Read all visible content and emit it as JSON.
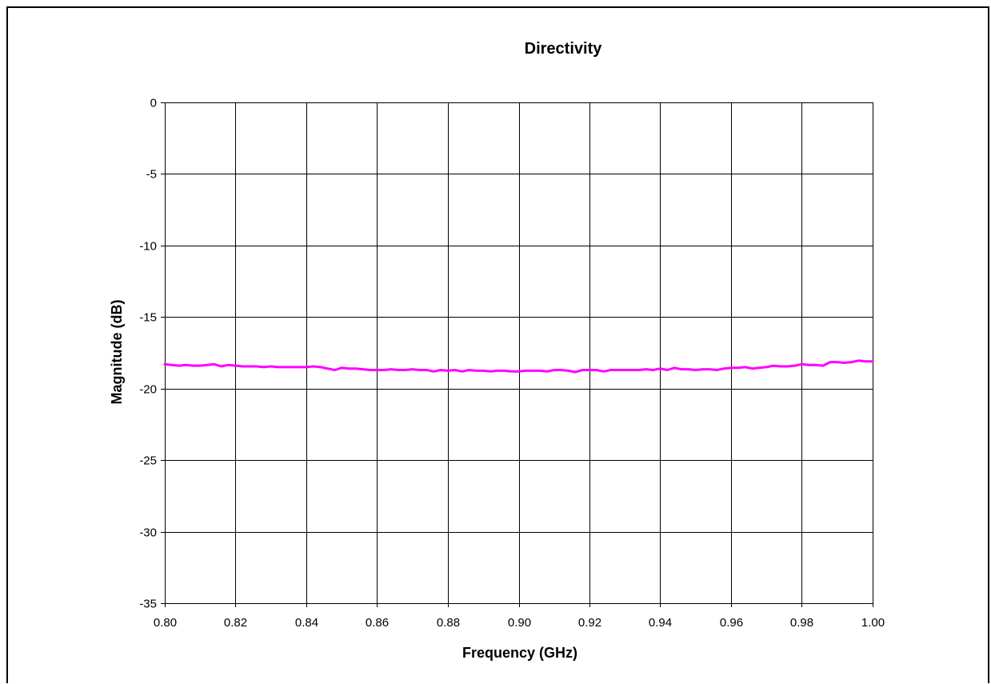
{
  "chart_data": {
    "type": "line",
    "title": "Directivity",
    "xlabel": "Frequency (GHz)",
    "ylabel": "Magnitude (dB)",
    "xlim": [
      0.8,
      1.0
    ],
    "ylim": [
      -35,
      0
    ],
    "x_ticks": [
      "0.80",
      "0.82",
      "0.84",
      "0.86",
      "0.88",
      "0.90",
      "0.92",
      "0.94",
      "0.96",
      "0.98",
      "1.00"
    ],
    "y_ticks": [
      "0",
      "-5",
      "-10",
      "-15",
      "-20",
      "-25",
      "-30",
      "-35"
    ],
    "grid": true,
    "legend": "none",
    "series": [
      {
        "color": "#ff00ff",
        "x": [
          0.8,
          0.802,
          0.804,
          0.806,
          0.808,
          0.81,
          0.812,
          0.814,
          0.816,
          0.818,
          0.82,
          0.822,
          0.824,
          0.826,
          0.828,
          0.83,
          0.832,
          0.834,
          0.836,
          0.838,
          0.84,
          0.842,
          0.844,
          0.846,
          0.848,
          0.85,
          0.852,
          0.854,
          0.856,
          0.858,
          0.86,
          0.862,
          0.864,
          0.866,
          0.868,
          0.87,
          0.872,
          0.874,
          0.876,
          0.878,
          0.88,
          0.882,
          0.884,
          0.886,
          0.888,
          0.89,
          0.892,
          0.894,
          0.896,
          0.898,
          0.9,
          0.902,
          0.904,
          0.906,
          0.908,
          0.91,
          0.912,
          0.914,
          0.916,
          0.918,
          0.92,
          0.922,
          0.924,
          0.926,
          0.928,
          0.93,
          0.932,
          0.934,
          0.936,
          0.938,
          0.94,
          0.942,
          0.944,
          0.946,
          0.948,
          0.95,
          0.952,
          0.954,
          0.956,
          0.958,
          0.96,
          0.962,
          0.964,
          0.966,
          0.968,
          0.97,
          0.972,
          0.974,
          0.976,
          0.978,
          0.98,
          0.982,
          0.984,
          0.986,
          0.988,
          0.99,
          0.992,
          0.994,
          0.996,
          0.998,
          1.0
        ],
        "values": [
          -18.3,
          -18.35,
          -18.4,
          -18.35,
          -18.4,
          -18.4,
          -18.35,
          -18.3,
          -18.45,
          -18.35,
          -18.4,
          -18.45,
          -18.45,
          -18.45,
          -18.5,
          -18.45,
          -18.5,
          -18.5,
          -18.5,
          -18.5,
          -18.5,
          -18.45,
          -18.5,
          -18.6,
          -18.7,
          -18.55,
          -18.6,
          -18.6,
          -18.65,
          -18.7,
          -18.7,
          -18.7,
          -18.65,
          -18.7,
          -18.7,
          -18.65,
          -18.7,
          -18.7,
          -18.8,
          -18.7,
          -18.75,
          -18.7,
          -18.8,
          -18.7,
          -18.75,
          -18.75,
          -18.8,
          -18.75,
          -18.75,
          -18.8,
          -18.8,
          -18.75,
          -18.75,
          -18.75,
          -18.8,
          -18.7,
          -18.7,
          -18.75,
          -18.85,
          -18.7,
          -18.7,
          -18.7,
          -18.8,
          -18.7,
          -18.7,
          -18.7,
          -18.7,
          -18.7,
          -18.65,
          -18.7,
          -18.6,
          -18.7,
          -18.55,
          -18.65,
          -18.65,
          -18.7,
          -18.65,
          -18.65,
          -18.7,
          -18.6,
          -18.55,
          -18.55,
          -18.5,
          -18.6,
          -18.55,
          -18.5,
          -18.4,
          -18.45,
          -18.45,
          -18.4,
          -18.3,
          -18.35,
          -18.35,
          -18.4,
          -18.15,
          -18.15,
          -18.2,
          -18.15,
          -18.05,
          -18.1,
          -18.1
        ]
      }
    ]
  }
}
